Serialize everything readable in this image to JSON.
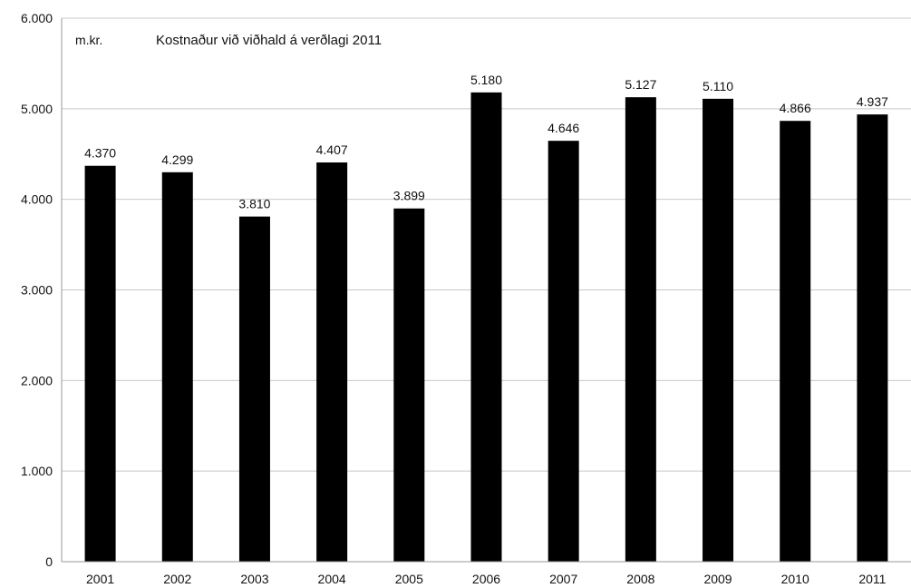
{
  "chart_data": {
    "type": "bar",
    "title": "Kostnaður við viðhald á verðlagi 2011",
    "unit_label": "m.kr.",
    "xlabel": "",
    "ylabel": "",
    "categories": [
      "2001",
      "2002",
      "2003",
      "2004",
      "2005",
      "2006",
      "2007",
      "2008",
      "2009",
      "2010",
      "2011"
    ],
    "values": [
      4370,
      4299,
      3810,
      4407,
      3899,
      5180,
      4646,
      5127,
      5110,
      4866,
      4937
    ],
    "value_labels": [
      "4.370",
      "4.299",
      "3.810",
      "4.407",
      "3.899",
      "5.180",
      "4.646",
      "5.127",
      "5.110",
      "4.866",
      "4.937"
    ],
    "ylim": [
      0,
      6000
    ],
    "yticks": [
      0,
      1000,
      2000,
      3000,
      4000,
      5000,
      6000
    ],
    "ytick_labels": [
      "0",
      "1.000",
      "2.000",
      "3.000",
      "4.000",
      "5.000",
      "6.000"
    ],
    "grid": true,
    "legend": "none",
    "bar_color": "#000000",
    "grid_color": "#c8c8c8",
    "axis_color": "#999999"
  }
}
